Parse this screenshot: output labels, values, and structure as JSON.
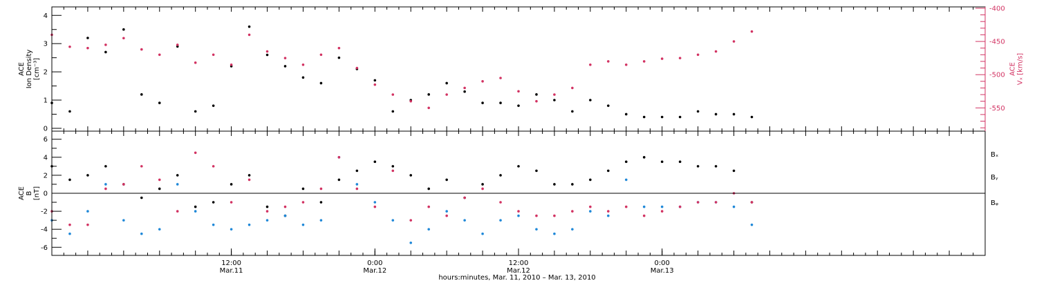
{
  "colors": {
    "black": "#000000",
    "red": "#d23262",
    "blue": "#1f88d8"
  },
  "xaxis": {
    "title": "hours:minutes, Mar. 11, 2010 – Mar. 13, 2010",
    "range_hours": [
      0,
      78
    ],
    "major_ticks": [
      {
        "hour": 15,
        "line1": "12:00",
        "line2": "Mar.11"
      },
      {
        "hour": 27,
        "line1": "0:00",
        "line2": "Mar.12"
      },
      {
        "hour": 39,
        "line1": "12:00",
        "line2": "Mar.12"
      },
      {
        "hour": 51,
        "line1": "0:00",
        "line2": "Mar.13"
      }
    ]
  },
  "chart_data": [
    {
      "type": "scatter",
      "panel": "top",
      "ylabel_lines": [
        "ACE",
        "Ion Density",
        "[cm⁻³]"
      ],
      "ylim": [
        -0.1,
        4.3
      ],
      "yticks": [
        "0",
        "1",
        "2",
        "3",
        "4"
      ],
      "y2label_lines": [
        "ACE",
        "Vₓ [km/s]"
      ],
      "y2lim": [
        -585,
        -398
      ],
      "y2ticks": [
        "-400",
        "-450",
        "-500",
        "-550"
      ],
      "x_hours": [
        0,
        1.5,
        3,
        4.5,
        6,
        7.5,
        9,
        10.5,
        12,
        13.5,
        15,
        16.5,
        18,
        19.5,
        21,
        22.5,
        24,
        25.5,
        27,
        28.5,
        30,
        31.5,
        33,
        34.5,
        36,
        37.5,
        39,
        40.5,
        42,
        43.5,
        45,
        46.5,
        48,
        49.5,
        51,
        52.5,
        54,
        55.5,
        57,
        58.5
      ],
      "series": [
        {
          "name": "Ion Density",
          "color": "#000000",
          "axis": "left",
          "values": [
            0.9,
            0.6,
            3.2,
            2.7,
            3.5,
            1.2,
            0.9,
            2.9,
            0.6,
            0.8,
            2.2,
            3.6,
            2.6,
            2.2,
            1.8,
            1.6,
            2.5,
            2.1,
            1.7,
            0.6,
            1.0,
            1.2,
            1.6,
            1.3,
            0.9,
            0.9,
            0.8,
            1.2,
            1.0,
            0.6,
            1.0,
            0.8,
            0.5,
            0.4,
            0.4,
            0.4,
            0.6,
            0.5,
            0.5,
            0.4
          ]
        },
        {
          "name": "Vx",
          "color": "#d23262",
          "axis": "right",
          "values": [
            -440,
            -458,
            -460,
            -455,
            -445,
            -462,
            -470,
            -455,
            -482,
            -470,
            -485,
            -440,
            -465,
            -475,
            -485,
            -470,
            -460,
            -490,
            -515,
            -530,
            -540,
            -550,
            -530,
            -520,
            -510,
            -505,
            -525,
            -540,
            -530,
            -520,
            -485,
            -480,
            -485,
            -480,
            -476,
            -475,
            -470,
            -465,
            -450,
            -435
          ]
        }
      ]
    },
    {
      "type": "scatter",
      "panel": "bottom",
      "ylabel_lines": [
        "ACE",
        "B",
        "[nT]"
      ],
      "ylim": [
        -6.9,
        6.9
      ],
      "yticks": [
        "-6",
        "-4",
        "-2",
        "0",
        "2",
        "4",
        "6"
      ],
      "x_hours": [
        0,
        1.5,
        3,
        4.5,
        6,
        7.5,
        9,
        10.5,
        12,
        13.5,
        15,
        16.5,
        18,
        19.5,
        21,
        22.5,
        24,
        25.5,
        27,
        28.5,
        30,
        31.5,
        33,
        34.5,
        36,
        37.5,
        39,
        40.5,
        42,
        43.5,
        45,
        46.5,
        48,
        49.5,
        51,
        52.5,
        54,
        55.5,
        57,
        58.5
      ],
      "series": [
        {
          "name": "Bx",
          "label": "Bₓ",
          "color": "#000000",
          "values": [
            3.0,
            1.5,
            2.0,
            3.0,
            1.0,
            -0.5,
            0.5,
            2.0,
            -1.5,
            -1.0,
            1.0,
            2.0,
            -1.5,
            -2.5,
            0.5,
            -1.0,
            1.5,
            2.5,
            3.5,
            3.0,
            2.0,
            0.5,
            1.5,
            -0.5,
            1.0,
            2.0,
            3.0,
            2.5,
            1.0,
            1.0,
            1.5,
            2.5,
            3.5,
            4.0,
            3.5,
            3.5,
            3.0,
            3.0,
            2.5,
            -1.0
          ]
        },
        {
          "name": "By",
          "label": "Bᵧ",
          "color": "#1f88d8",
          "values": [
            -3.0,
            -4.5,
            -2.0,
            1.0,
            -3.0,
            -4.5,
            -4.0,
            1.0,
            -2.0,
            -3.5,
            -4.0,
            -3.5,
            -3.0,
            -2.5,
            -3.5,
            -3.0,
            4.0,
            1.0,
            -1.0,
            -3.0,
            -5.5,
            -4.0,
            -2.0,
            -3.0,
            -4.5,
            -3.0,
            -2.5,
            -4.0,
            -4.5,
            -4.0,
            -2.0,
            -2.5,
            1.5,
            -1.5,
            -1.5,
            -1.5,
            -1.0,
            -1.0,
            -1.5,
            -3.5
          ]
        },
        {
          "name": "Bz",
          "label": "Bᵩ",
          "color": "#d23262",
          "values": [
            -2.0,
            -3.5,
            -3.5,
            0.5,
            1.0,
            3.0,
            1.5,
            -2.0,
            4.5,
            3.0,
            -1.0,
            1.5,
            -2.0,
            -1.5,
            -1.0,
            0.5,
            4.0,
            0.5,
            -1.5,
            2.5,
            -3.0,
            -1.5,
            -2.5,
            -0.5,
            0.5,
            -1.0,
            -2.0,
            -2.5,
            -2.5,
            -2.0,
            -1.5,
            -2.0,
            -1.5,
            -2.5,
            -2.0,
            -1.5,
            -1.0,
            -1.0,
            0.0,
            -1.0
          ]
        }
      ]
    }
  ]
}
